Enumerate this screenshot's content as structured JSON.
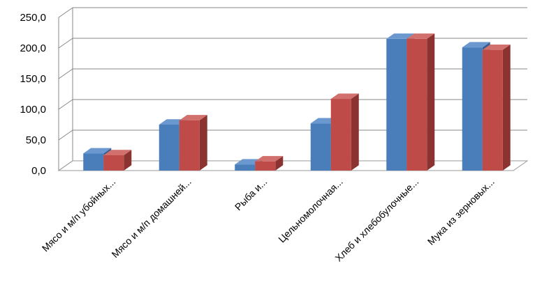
{
  "chart_data": {
    "type": "bar",
    "categories": [
      "Мясо  и м/п убойных...",
      "Мясо  и м/п домашней...",
      "Рыба и...",
      "Цельномолочная...",
      "Хлеб и хлебобулочные...",
      "Мука из зерновых..."
    ],
    "series": [
      {
        "values": [
          28,
          75,
          10,
          77,
          215,
          201
        ]
      },
      {
        "values": [
          25,
          82,
          15,
          117,
          215,
          197
        ]
      }
    ],
    "ylim": [
      0,
      250
    ],
    "yticks": [
      "0,0",
      "50,0",
      "100,0",
      "150,0",
      "200,0",
      "250,0"
    ],
    "grid": true,
    "legend": "none",
    "colors": {
      "series": [
        {
          "front": "#4a7ebb",
          "side": "#365f8f",
          "top": "#6a98cf"
        },
        {
          "front": "#be4b48",
          "side": "#8b3331",
          "top": "#d1706d"
        }
      ],
      "grid": "#878787",
      "floor": "#9a9a9a"
    }
  }
}
